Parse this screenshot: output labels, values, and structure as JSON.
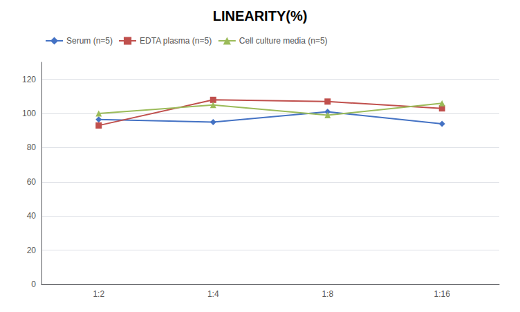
{
  "chart_data": {
    "type": "line",
    "title": "LINEARITY(%)",
    "categories": [
      "1:2",
      "1:4",
      "1:8",
      "1:16"
    ],
    "series": [
      {
        "name": "Serum (n=5)",
        "color": "#4472C4",
        "marker": "diamond",
        "values": [
          96.5,
          95.0,
          101.0,
          94.0
        ]
      },
      {
        "name": "EDTA plasma (n=5)",
        "color": "#C0504D",
        "marker": "square",
        "values": [
          93.0,
          108.0,
          107.0,
          103.0
        ]
      },
      {
        "name": "Cell culture media (n=5)",
        "color": "#9BBB59",
        "marker": "triangle",
        "values": [
          100.0,
          105.0,
          99.0,
          106.0
        ]
      }
    ],
    "ylim": [
      0,
      130
    ],
    "yticks": [
      0,
      20,
      40,
      60,
      80,
      100,
      120
    ],
    "grid": true,
    "legend": "upper left"
  }
}
